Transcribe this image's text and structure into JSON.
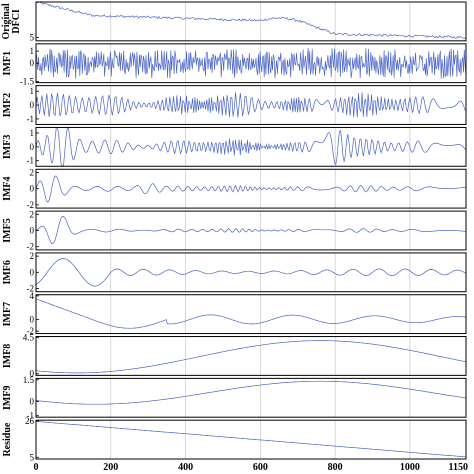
{
  "chart_data": {
    "type": "line",
    "x": {
      "range": [
        0,
        1150
      ],
      "ticks": [
        "0",
        "200",
        "400",
        "600",
        "800",
        "1000",
        "1150"
      ]
    },
    "colors": {
      "line": "#4a64c8",
      "frame": "#000000",
      "grid": "#bdbdbd"
    },
    "grid": true,
    "panels": [
      {
        "label": "Original DFCI",
        "ylim": [
          3,
          26
        ],
        "yticks": [
          "5"
        ],
        "signal": {
          "kind": "original",
          "start": 26,
          "end": 5
        }
      },
      {
        "label": "IMF1",
        "ylim": [
          -1.6,
          1.6
        ],
        "yticks": [
          "1",
          "0",
          "-1.5"
        ],
        "signal": {
          "kind": "noise",
          "amp": 1.3,
          "period": 6
        }
      },
      {
        "label": "IMF2",
        "ylim": [
          -1.4,
          1.4
        ],
        "yticks": [
          "1",
          "0",
          "-1"
        ],
        "signal": {
          "kind": "osc",
          "amp": 0.8,
          "period": 14
        }
      },
      {
        "label": "IMF3",
        "ylim": [
          -1.4,
          1.4
        ],
        "yticks": [
          "1",
          "0",
          "-1"
        ],
        "signal": {
          "kind": "osc",
          "amp": 0.55,
          "period": 26,
          "bursts": [
            [
              70,
              1.1
            ],
            [
              800,
              1.0
            ]
          ]
        }
      },
      {
        "label": "IMF4",
        "ylim": [
          -2.4,
          2.4
        ],
        "yticks": [
          "2",
          "0",
          "-2"
        ],
        "signal": {
          "kind": "osc",
          "amp": 0.35,
          "period": 45,
          "bursts": [
            [
              40,
              1.4
            ],
            [
              300,
              0.6
            ]
          ]
        }
      },
      {
        "label": "IMF5",
        "ylim": [
          -2.4,
          2.4
        ],
        "yticks": [
          "2",
          "0",
          "-2"
        ],
        "signal": {
          "kind": "osc",
          "amp": 0.2,
          "period": 60,
          "bursts": [
            [
              60,
              1.8
            ]
          ]
        }
      },
      {
        "label": "IMF6",
        "ylim": [
          -2.4,
          2.4
        ],
        "yticks": [
          "2",
          "0",
          "-2"
        ],
        "signal": {
          "kind": "imf6"
        }
      },
      {
        "label": "IMF7",
        "ylim": [
          -2.4,
          4.2
        ],
        "yticks": [
          "4",
          "0",
          "-2"
        ],
        "signal": {
          "kind": "imf7"
        }
      },
      {
        "label": "IMF8",
        "ylim": [
          -0.2,
          4.6
        ],
        "yticks": [
          "4.5",
          "0"
        ],
        "signal": {
          "kind": "wave",
          "center": 2.1,
          "amp": 2.0,
          "period": 1300,
          "peak": 760
        }
      },
      {
        "label": "IMF9",
        "ylim": [
          -1.1,
          1.6
        ],
        "yticks": [
          "1.5",
          "0",
          "-1"
        ],
        "signal": {
          "kind": "wave",
          "center": 0.6,
          "amp": 0.8,
          "period": 1200,
          "peak": 760
        }
      },
      {
        "label": "Residue",
        "ylim": [
          4,
          26.5
        ],
        "yticks": [
          "26",
          "5"
        ],
        "signal": {
          "kind": "linear",
          "start": 25.8,
          "end": 5.2
        }
      }
    ]
  }
}
